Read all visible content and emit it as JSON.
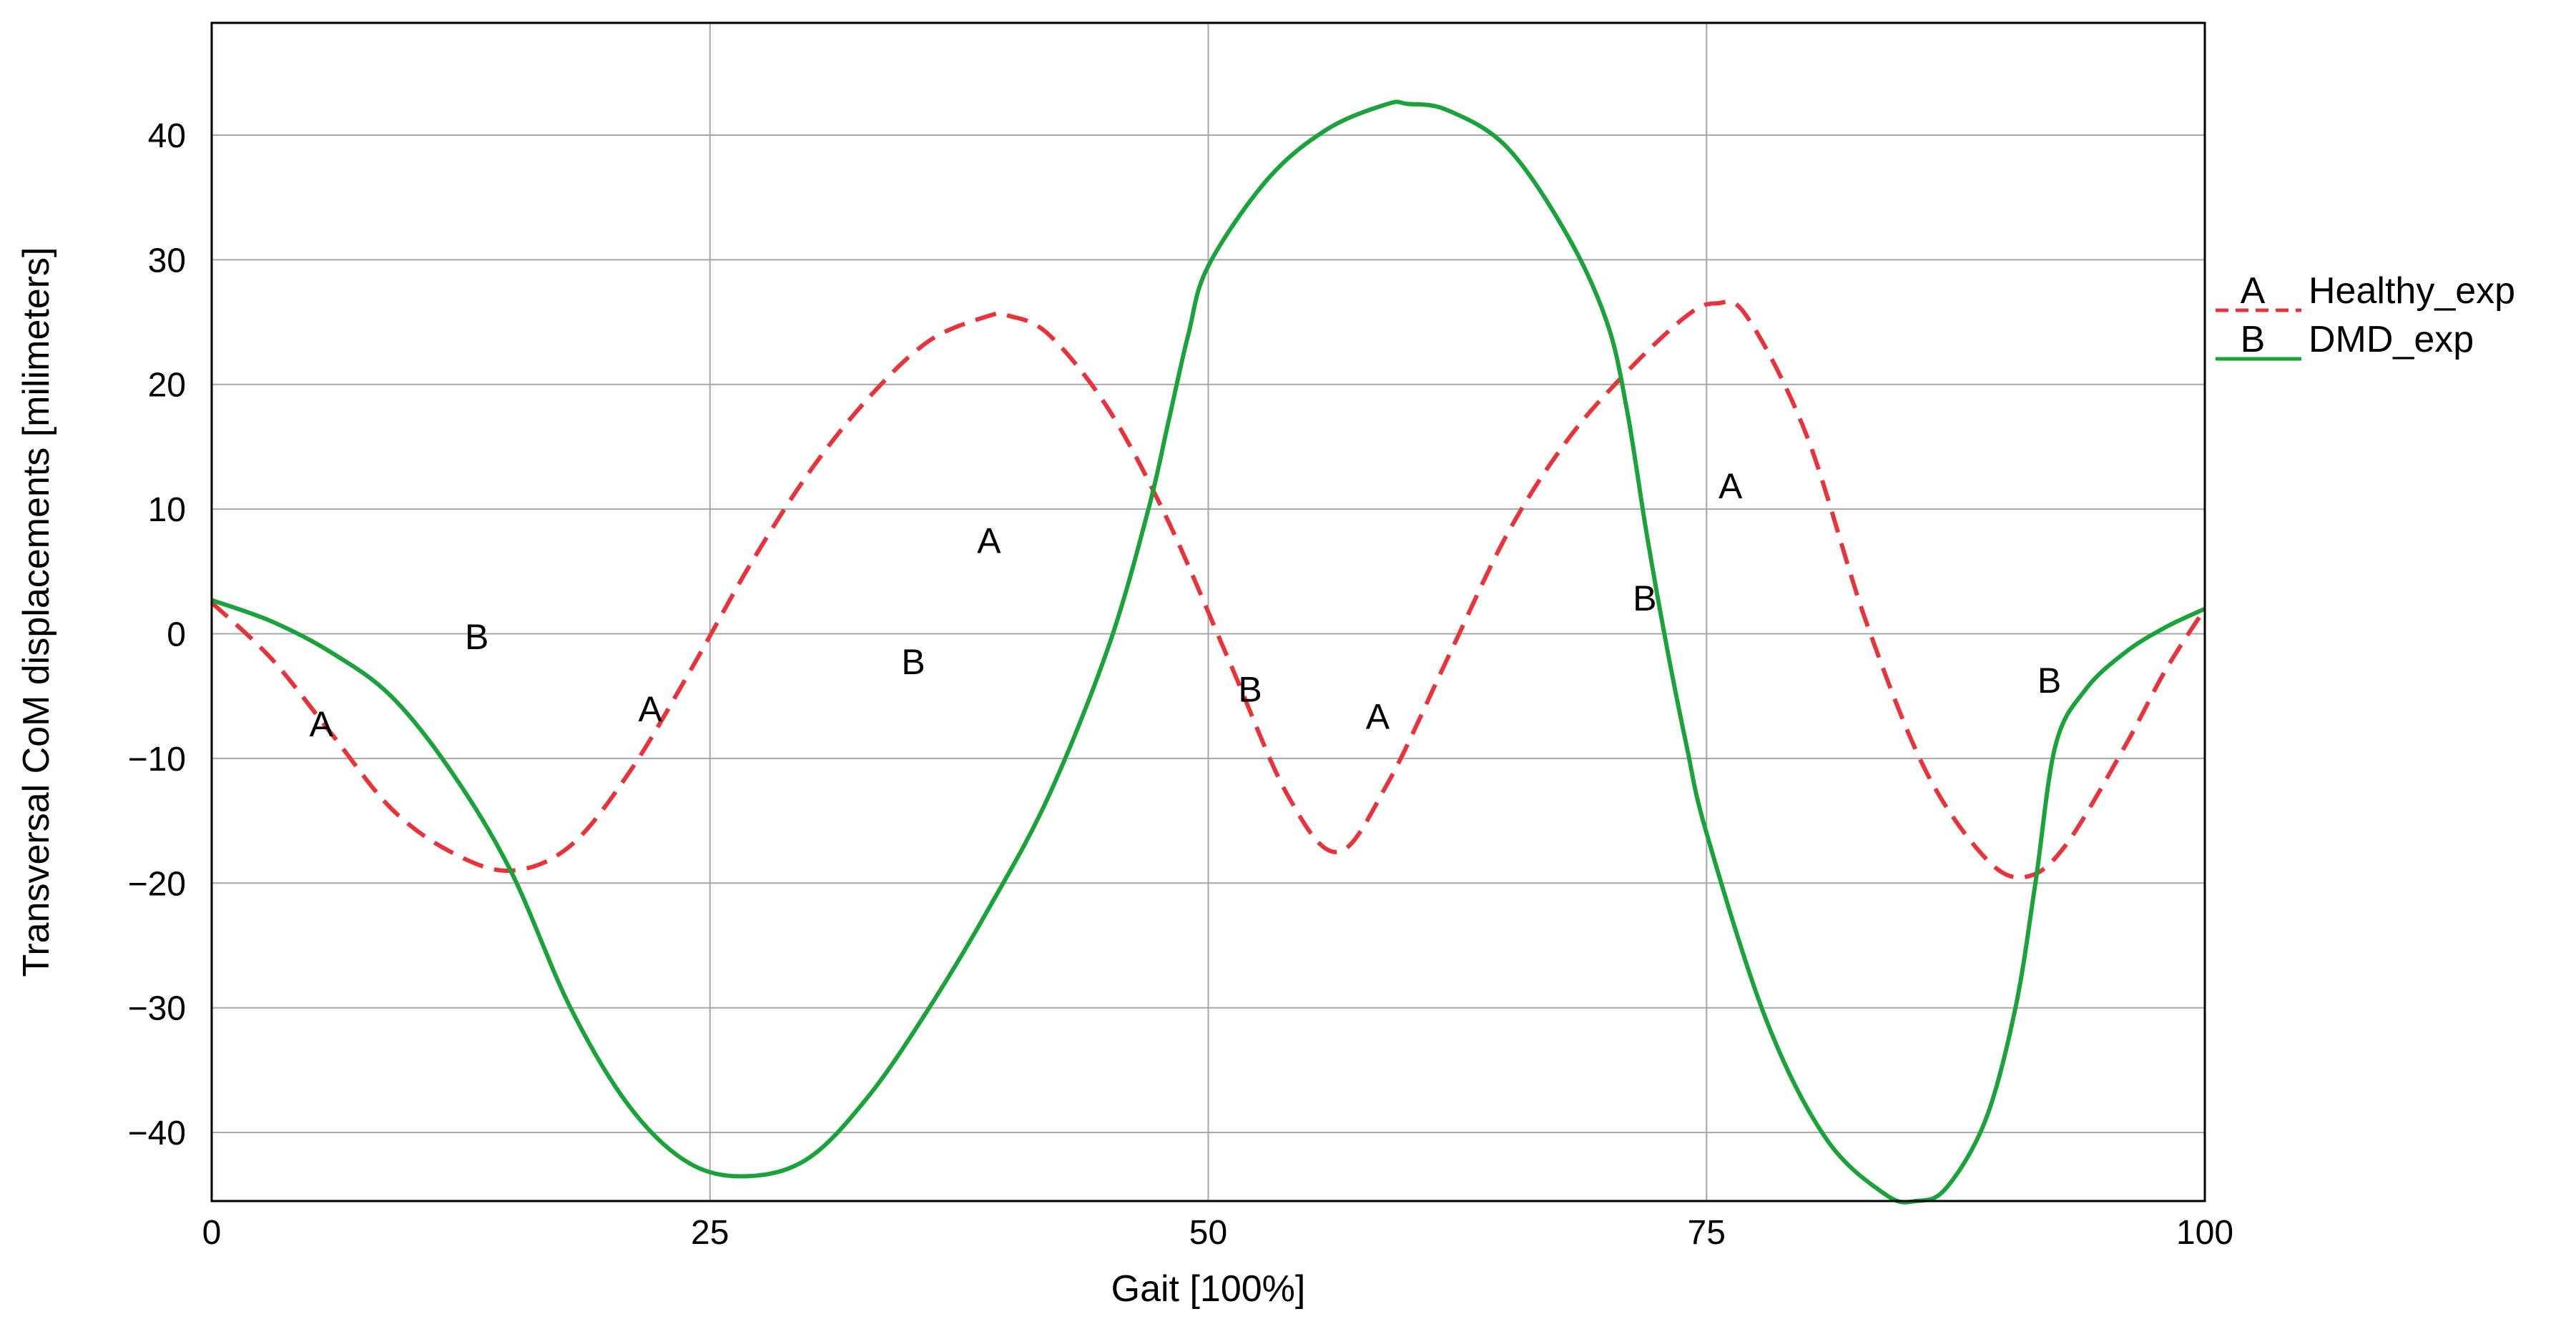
{
  "chart_data": {
    "type": "line",
    "title": "",
    "xlabel": "Gait [100%]",
    "ylabel": "Transversal CoM displacements [milimeters]",
    "xlim": [
      0,
      100
    ],
    "ylim": [
      -45.5,
      49
    ],
    "xticks": [
      0,
      25,
      50,
      75,
      100
    ],
    "yticks": [
      40,
      30,
      20,
      10,
      0,
      -10,
      -20,
      -30,
      -40
    ],
    "grid": true,
    "legend_position": "right",
    "series": [
      {
        "name": "Healthy_exp",
        "marker_label": "A",
        "color": "#e8333a",
        "style": "dashed",
        "x": [
          0,
          3,
          6,
          9,
          12,
          15,
          18,
          21,
          24,
          27,
          30,
          33,
          36,
          39,
          40,
          42,
          45,
          48,
          51,
          54,
          56.5,
          59,
          62,
          65,
          68,
          71,
          74,
          75.5,
          77,
          80,
          83,
          86,
          89,
          91,
          93,
          96,
          98,
          100
        ],
        "y": [
          2.5,
          -2,
          -8,
          -14,
          -17.5,
          -19,
          -17,
          -11,
          -3,
          5.5,
          13,
          19,
          23.5,
          25.5,
          25.5,
          24,
          18,
          9,
          -2,
          -13,
          -17.5,
          -12,
          -2,
          8,
          15.5,
          21,
          25.5,
          26.5,
          25.5,
          16,
          1,
          -11,
          -18,
          -19.5,
          -17,
          -9,
          -3,
          2
        ],
        "labels_at": [
          [
            5.5,
            -7.2
          ],
          [
            22,
            -6
          ],
          [
            39,
            7.5
          ],
          [
            58.5,
            -6.6
          ],
          [
            76.2,
            11.9
          ]
        ]
      },
      {
        "name": "DMD_exp",
        "marker_label": "B",
        "color": "#1aa33a",
        "style": "solid",
        "x": [
          0,
          3,
          6,
          9,
          12,
          15,
          18,
          21,
          24,
          27,
          30,
          33,
          36,
          39,
          42,
          45,
          47,
          48,
          49,
          50,
          53,
          56,
          59,
          60,
          62,
          65,
          68,
          70,
          71,
          72,
          73,
          74,
          75,
          78,
          81,
          84,
          85.5,
          87,
          89,
          90.5,
          91.5,
          92.5,
          94,
          96,
          98,
          100
        ],
        "y": [
          2.7,
          1,
          -1.5,
          -5,
          -11,
          -19,
          -30,
          -38,
          -42.5,
          -43.5,
          -42,
          -37,
          -30,
          -22,
          -13,
          -1,
          10,
          17,
          24,
          29.5,
          36.5,
          40.5,
          42.5,
          42.5,
          42,
          39,
          32,
          25,
          18,
          8,
          -1,
          -9,
          -16,
          -31,
          -40.5,
          -45,
          -45.5,
          -44.5,
          -39,
          -30,
          -20,
          -9,
          -4.5,
          -1.5,
          0.5,
          2
        ],
        "labels_at": [
          [
            13.3,
            -0.2
          ],
          [
            35.2,
            -2.2
          ],
          [
            52.1,
            -4.4
          ],
          [
            71.9,
            2.9
          ],
          [
            92.2,
            -3.7
          ]
        ]
      }
    ]
  }
}
